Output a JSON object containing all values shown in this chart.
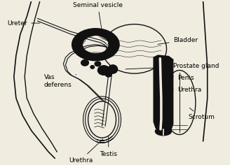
{
  "bg_color": "#f0ece0",
  "line_color": "#111111",
  "fill_dark": "#111111",
  "labels": {
    "seminal_vesicle": "Seminal vesicle",
    "ureter": "Ureter",
    "bladder": "Bladder",
    "prostate_gland": "Prostate gland",
    "penis": "Penis",
    "urethra_right": "Urethra",
    "scrotum": "Scrotum",
    "vas_deferens": "Vas\ndeferens",
    "testis": "Testis",
    "urethra_bottom": "Urethra"
  },
  "fontsize": 6.5
}
